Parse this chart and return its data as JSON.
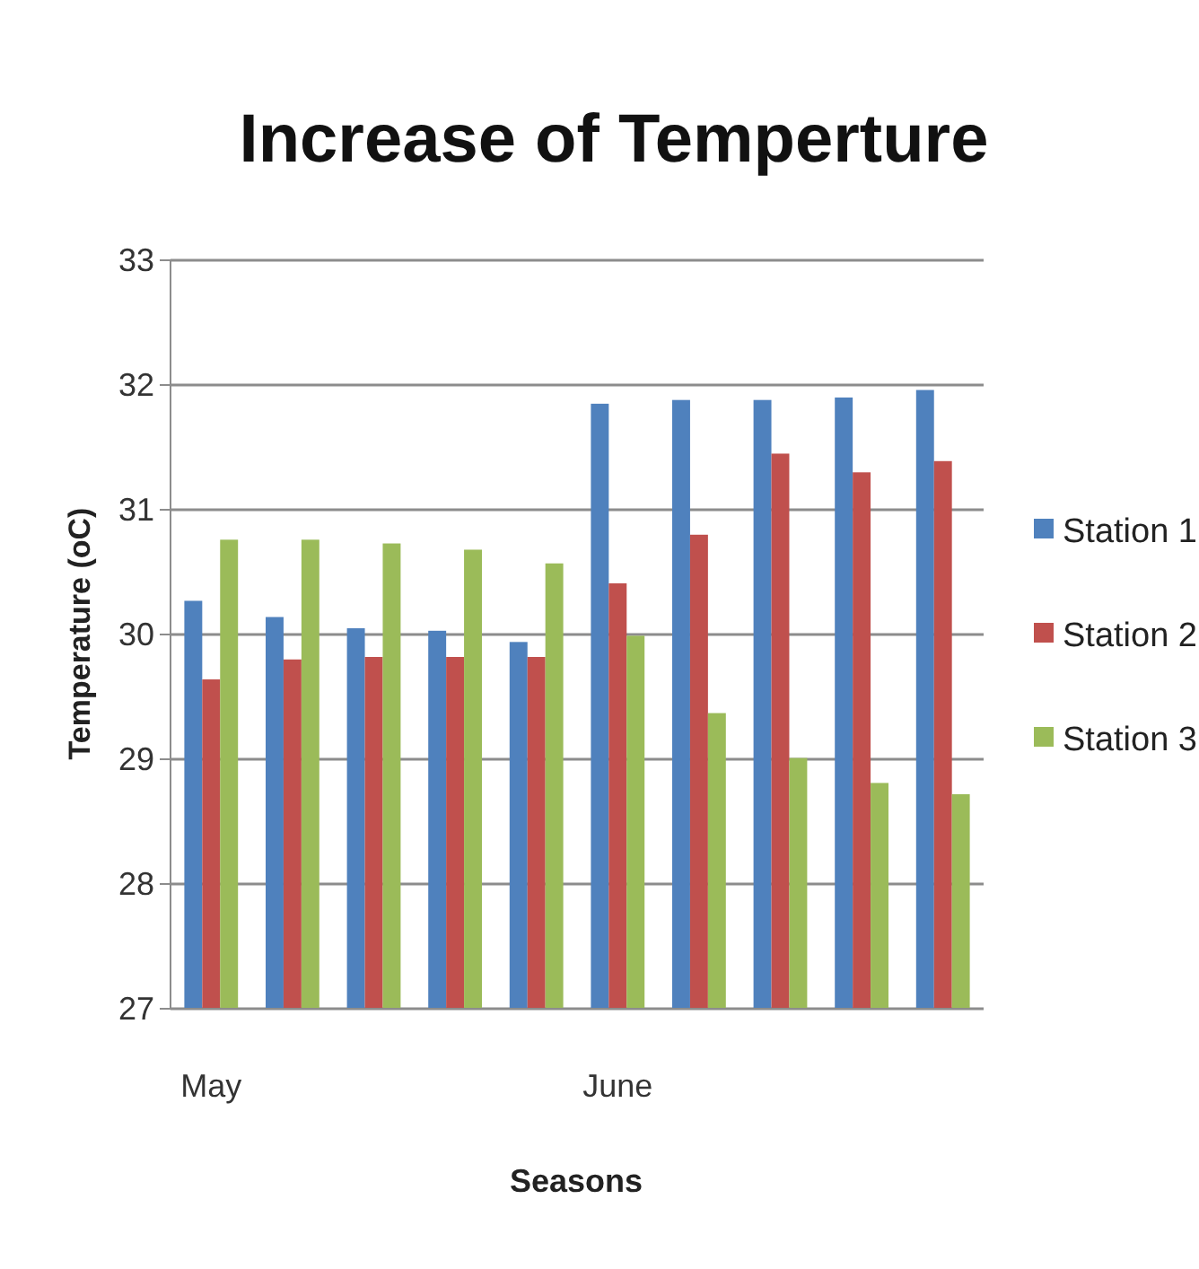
{
  "chart_data": {
    "type": "bar",
    "title": "Increase of Temperture",
    "xlabel": "Seasons",
    "ylabel": "Temperature (oC)",
    "categories": [
      "May",
      null,
      null,
      null,
      null,
      "June",
      null,
      null,
      null,
      null
    ],
    "series": [
      {
        "name": "Station 1",
        "color": "#4f81bd",
        "values": [
          30.27,
          30.14,
          30.05,
          30.03,
          29.94,
          31.85,
          31.88,
          31.88,
          31.9,
          31.96
        ]
      },
      {
        "name": "Station 2",
        "color": "#c0504d",
        "values": [
          29.64,
          29.8,
          29.82,
          29.82,
          29.82,
          30.41,
          30.8,
          31.45,
          31.3,
          31.39
        ]
      },
      {
        "name": "Station 3",
        "color": "#9bbb59",
        "values": [
          30.76,
          30.76,
          30.73,
          30.68,
          30.57,
          29.99,
          29.37,
          29.01,
          28.81,
          28.72
        ]
      }
    ],
    "ylim": [
      27,
      33
    ],
    "yticks": [
      27,
      28,
      29,
      30,
      31,
      32,
      33
    ],
    "grid": "y",
    "legend": "right"
  }
}
